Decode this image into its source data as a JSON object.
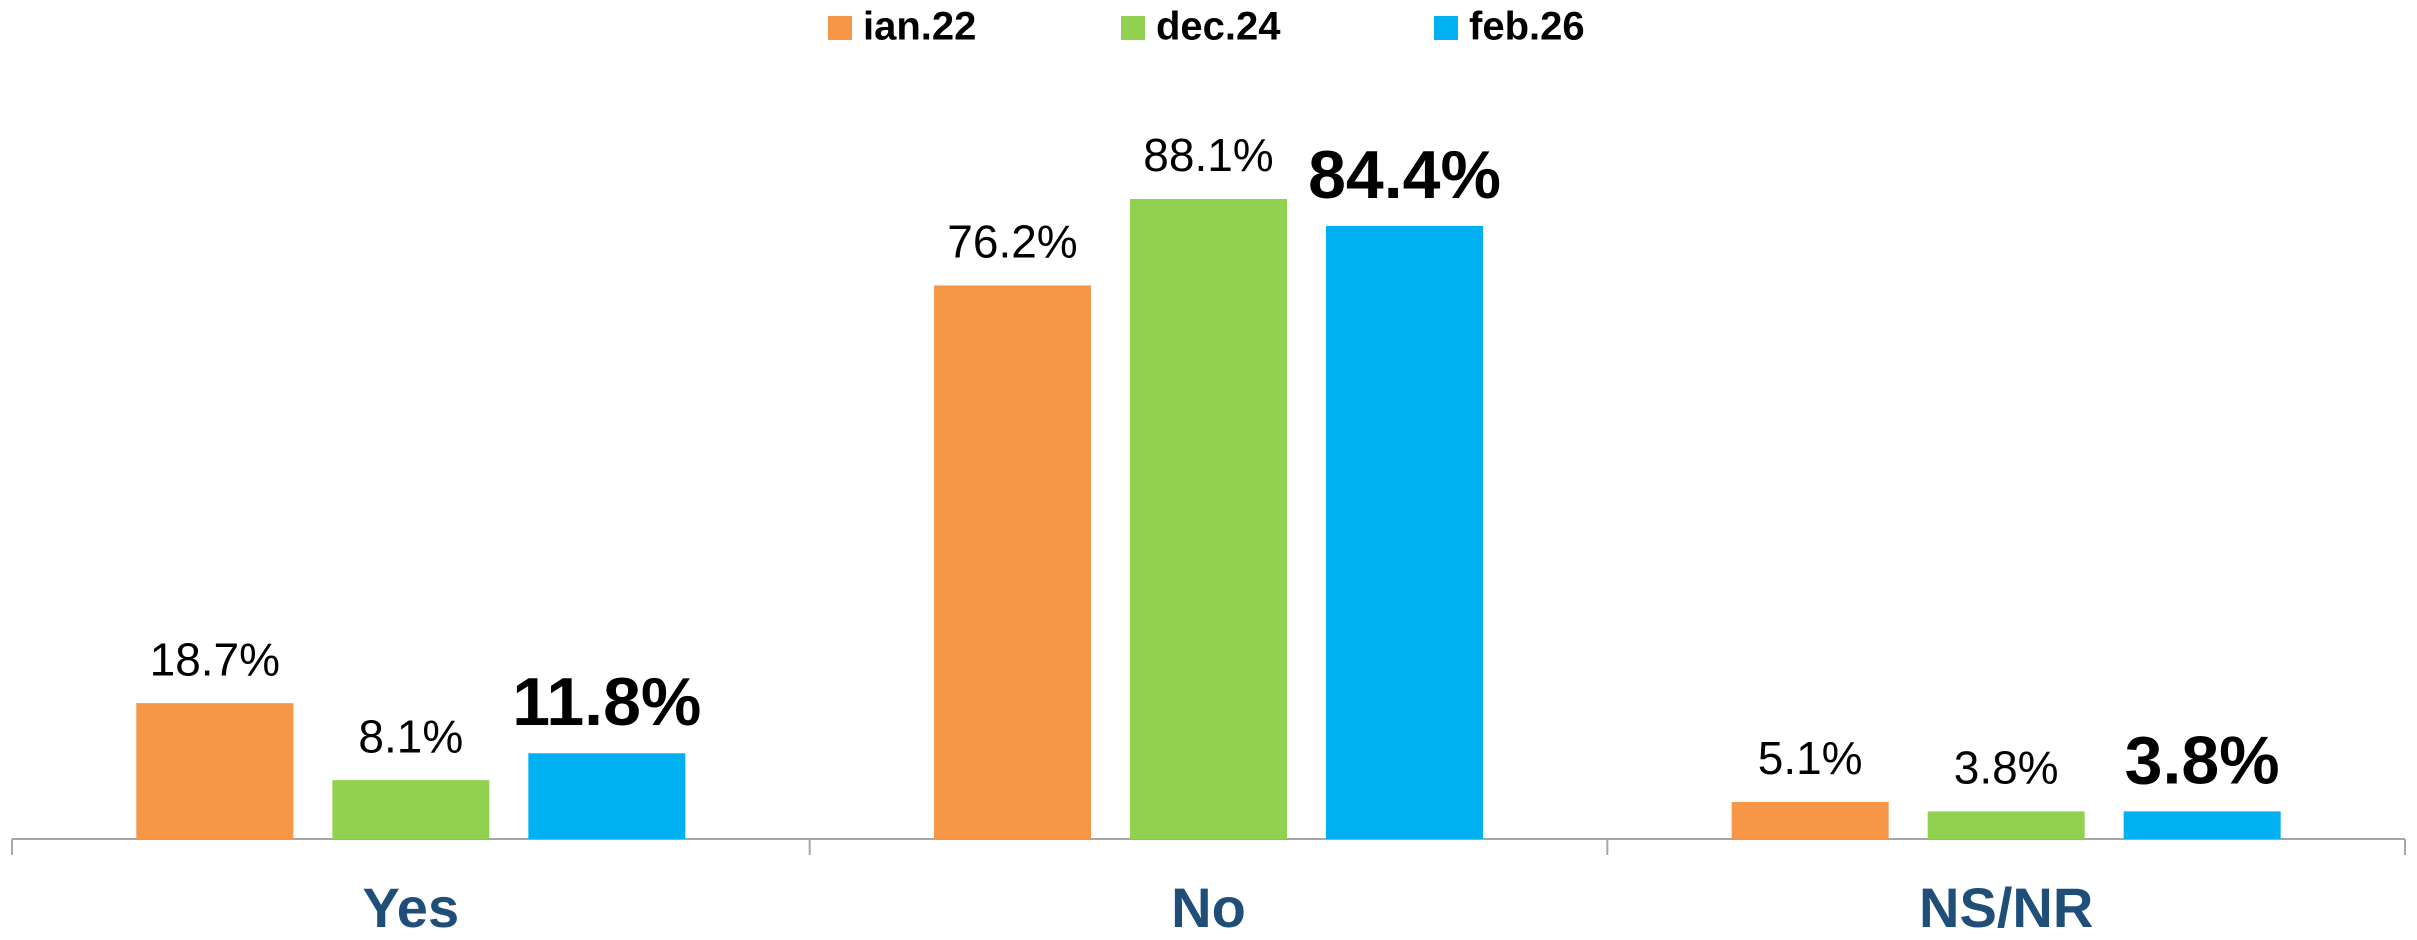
{
  "chart_data": {
    "type": "bar",
    "categories": [
      "Yes",
      "No",
      "NS/NR"
    ],
    "series": [
      {
        "name": "ian.22",
        "color": "#f79646",
        "values": [
          18.7,
          76.2,
          5.1
        ],
        "value_labels": [
          "18.7%",
          "76.2%",
          "5.1%"
        ]
      },
      {
        "name": "dec.24",
        "color": "#92d050",
        "values": [
          8.1,
          88.1,
          3.8
        ],
        "value_labels": [
          "8.1%",
          "88.1%",
          "3.8%"
        ]
      },
      {
        "name": "feb.26",
        "color": "#00b0f0",
        "values": [
          11.8,
          84.4,
          3.8
        ],
        "value_labels": [
          "11.8%",
          "84.4%",
          "3.8%"
        ],
        "label_bold": true
      }
    ],
    "legend": "top"
  }
}
